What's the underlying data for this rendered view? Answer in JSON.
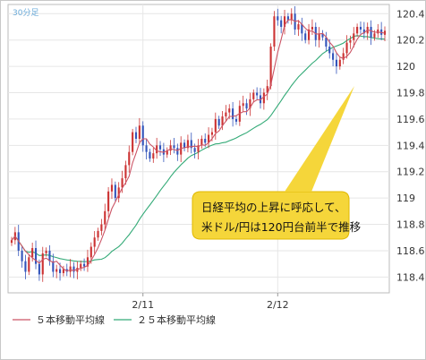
{
  "chart_data": {
    "type": "candlestick",
    "timeframe_label": "30分足",
    "y_ticks": [
      "120.4",
      "120.2",
      "120",
      "119.8",
      "119.6",
      "119.4",
      "119.2",
      "119",
      "118.8",
      "118.6",
      "118.4"
    ],
    "x_ticks": [
      "2/11",
      "2/12"
    ],
    "ylim": [
      118.28,
      120.47
    ],
    "grid": true,
    "colors": {
      "up": "#cc3333",
      "down": "#3355bb",
      "ma5": "#cc5566",
      "ma25": "#33aa77",
      "callout_fill": "#f5d63a",
      "callout_stroke": "#e0b800",
      "grid": "#e6e6e6",
      "axis_text": "#333333"
    },
    "candles_close": [
      118.68,
      118.74,
      118.6,
      118.52,
      118.44,
      118.55,
      118.62,
      118.5,
      118.42,
      118.58,
      118.6,
      118.52,
      118.44,
      118.46,
      118.43,
      118.46,
      118.44,
      118.48,
      118.44,
      118.47,
      118.5,
      118.48,
      118.55,
      118.63,
      118.7,
      118.75,
      118.8,
      118.9,
      119.05,
      119.1,
      119.0,
      119.08,
      119.15,
      119.25,
      119.35,
      119.5,
      119.45,
      119.55,
      119.4,
      119.35,
      119.3,
      119.34,
      119.4,
      119.37,
      119.33,
      119.36,
      119.4,
      119.38,
      119.33,
      119.42,
      119.38,
      119.44,
      119.38,
      119.35,
      119.4,
      119.45,
      119.42,
      119.48,
      119.5,
      119.6,
      119.55,
      119.62,
      119.65,
      119.68,
      119.6,
      119.58,
      119.7,
      119.72,
      119.68,
      119.75,
      119.8,
      119.78,
      119.72,
      119.8,
      119.85,
      120.15,
      120.38,
      120.35,
      120.3,
      120.38,
      120.35,
      120.4,
      120.28,
      120.32,
      120.25,
      120.2,
      120.28,
      120.3,
      120.2,
      120.25,
      120.22,
      120.15,
      120.1,
      120.05,
      120.0,
      120.05,
      120.1,
      120.18,
      120.2,
      120.25,
      120.3,
      120.28,
      120.25,
      120.3,
      120.22,
      120.25,
      120.28,
      120.24,
      120.27
    ],
    "series": [
      {
        "name": "５本移動平均線"
      },
      {
        "name": "２５本移動平均線"
      }
    ],
    "annotation": [
      "日経平均の上昇に呼応して、",
      "米ドル/円は120円台前半で推移"
    ]
  }
}
